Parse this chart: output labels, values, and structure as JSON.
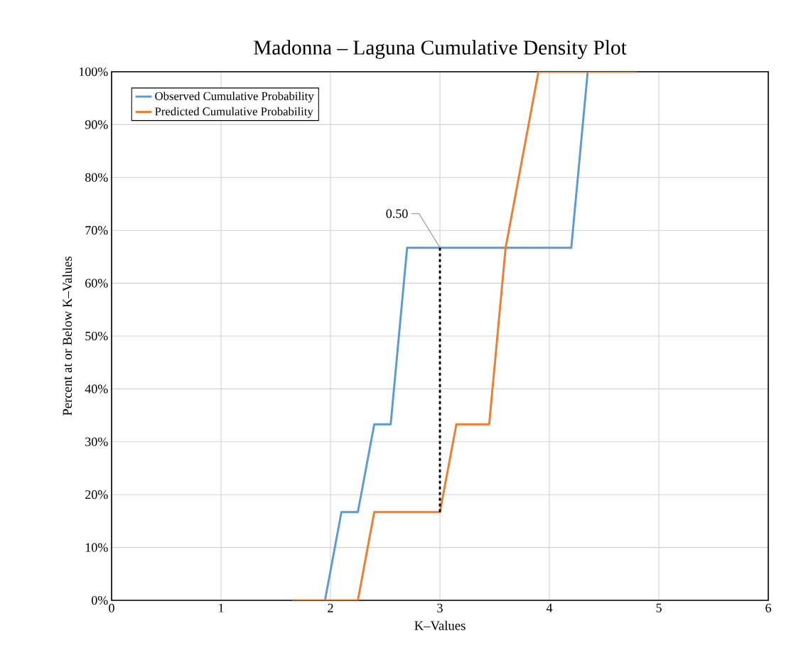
{
  "chart_data": {
    "type": "line",
    "title": "Madonna – Laguna Cumulative Density Plot",
    "xlabel": "K–Values",
    "ylabel": "Percent at or Below K–Values",
    "series": [
      {
        "name": "Observed Cumulative Probability",
        "color": "#5b9bd5",
        "x": [
          1.95,
          2.1,
          2.25,
          2.4,
          2.55,
          2.7,
          4.2,
          4.35
        ],
        "values": [
          0,
          16.7,
          16.7,
          33.3,
          33.3,
          66.7,
          66.7,
          100
        ]
      },
      {
        "name": "Predicted Cumulative Probability",
        "color": "#ed7d31",
        "x": [
          1.65,
          2.25,
          2.4,
          3.0,
          3.15,
          3.45,
          3.6,
          3.9,
          4.8
        ],
        "values": [
          0,
          0,
          16.7,
          16.7,
          33.3,
          33.3,
          66.7,
          100,
          100
        ]
      },
      {
        "color": "#000000",
        "line_style": "dashed",
        "x": [
          3.0,
          3.0
        ],
        "values": [
          16.7,
          66.7
        ]
      }
    ],
    "annotations": [
      {
        "text": "0.50",
        "x": 3.0,
        "y": 66.7
      }
    ],
    "xlim": [
      0,
      6
    ],
    "ylim": [
      0,
      100
    ],
    "xticks": [
      0,
      1,
      2,
      3,
      4,
      5,
      6
    ],
    "yticks": [
      {
        "value": 0,
        "label": "0%"
      },
      {
        "value": 10,
        "label": "10%"
      },
      {
        "value": 20,
        "label": "20%"
      },
      {
        "value": 30,
        "label": "30%"
      },
      {
        "value": 40,
        "label": "40%"
      },
      {
        "value": 50,
        "label": "50%"
      },
      {
        "value": 60,
        "label": "60%"
      },
      {
        "value": 70,
        "label": "70%"
      },
      {
        "value": 80,
        "label": "80%"
      },
      {
        "value": 90,
        "label": "90%"
      },
      {
        "value": 100,
        "label": "100%"
      }
    ],
    "grid": true,
    "legend": "top left",
    "marker": "none",
    "line_style": "solid"
  }
}
